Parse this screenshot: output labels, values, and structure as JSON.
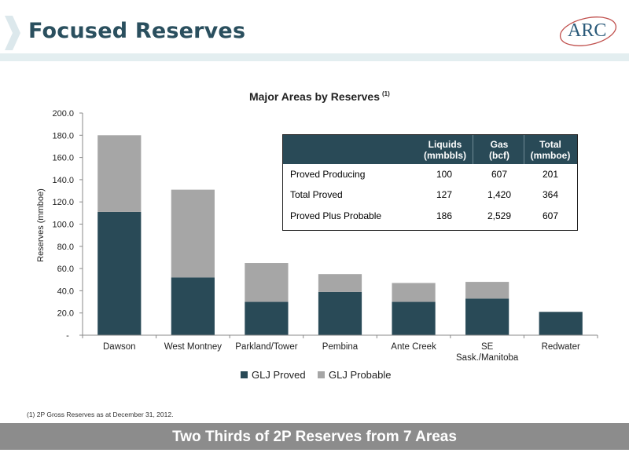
{
  "slide": {
    "title": "Focused Reserves",
    "logo_text": "ARC",
    "footnote": "(1)  2P Gross Reserves as at December 31, 2012.",
    "banner": "Two Thirds of 2P Reserves from 7 Areas"
  },
  "chart_data": {
    "type": "bar",
    "stacked": true,
    "title": "Major Areas by Reserves",
    "title_superscript": "(1)",
    "ylabel": "Reserves (mmboe)",
    "ylim": [
      0,
      200
    ],
    "yticks": [
      "-",
      "20.0",
      "40.0",
      "60.0",
      "80.0",
      "100.0",
      "120.0",
      "140.0",
      "160.0",
      "180.0",
      "200.0"
    ],
    "categories": [
      "Dawson",
      "West Montney",
      "Parkland/Tower",
      "Pembina",
      "Ante Creek",
      "SE Sask./Manitoba",
      "Redwater"
    ],
    "category_lines": [
      [
        "Dawson"
      ],
      [
        "West Montney"
      ],
      [
        "Parkland/Tower"
      ],
      [
        "Pembina"
      ],
      [
        "Ante Creek"
      ],
      [
        "SE",
        "Sask./Manitoba"
      ],
      [
        "Redwater"
      ]
    ],
    "series": [
      {
        "name": "GLJ Proved",
        "color": "#294a57",
        "values": [
          111,
          52,
          30,
          39,
          30,
          33,
          21
        ]
      },
      {
        "name": "GLJ Probable",
        "color": "#a6a6a6",
        "values": [
          69,
          79,
          35,
          16,
          17,
          15,
          0
        ]
      }
    ],
    "grid": false,
    "legend_position": "bottom"
  },
  "table": {
    "headers": [
      [
        "Liquids",
        "(mmbbls)"
      ],
      [
        "Gas",
        "(bcf)"
      ],
      [
        "Total",
        "(mmboe)"
      ]
    ],
    "rows": [
      {
        "label": "Proved Producing",
        "values": [
          "100",
          "607",
          "201"
        ]
      },
      {
        "label": "Total Proved",
        "values": [
          "127",
          "1,420",
          "364"
        ]
      },
      {
        "label": "Proved Plus Probable",
        "values": [
          "186",
          "2,529",
          "607"
        ]
      }
    ]
  }
}
